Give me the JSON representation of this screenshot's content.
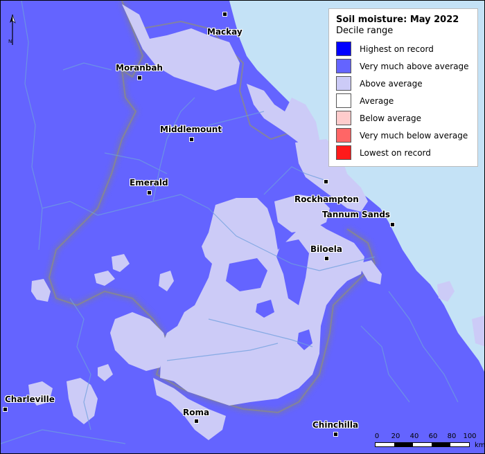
{
  "map": {
    "colors": {
      "very_much_above": "#6464ff",
      "above": "#cccbf7",
      "sea": "#c4e2f6",
      "river": "#6fa0dd",
      "boundary": "#808080"
    }
  },
  "legend": {
    "title": "Soil moisture: May 2022",
    "subtitle": "Decile range",
    "items": [
      {
        "label": "Highest on record",
        "color": "#0000ff"
      },
      {
        "label": "Very much above average",
        "color": "#6464ff"
      },
      {
        "label": "Above average",
        "color": "#cccbf7"
      },
      {
        "label": "Average",
        "color": "#ffffff"
      },
      {
        "label": "Below average",
        "color": "#ffcccc"
      },
      {
        "label": "Very much below average",
        "color": "#ff6666"
      },
      {
        "label": "Lowest on record",
        "color": "#ff1a1a"
      }
    ]
  },
  "north_arrow": {
    "label": "N"
  },
  "towns": [
    {
      "name": "Mackay"
    },
    {
      "name": "Moranbah"
    },
    {
      "name": "Middlemount"
    },
    {
      "name": "Emerald"
    },
    {
      "name": "Rockhampton"
    },
    {
      "name": "Tannum Sands"
    },
    {
      "name": "Biloela"
    },
    {
      "name": "Charleville"
    },
    {
      "name": "Roma"
    },
    {
      "name": "Chinchilla"
    }
  ],
  "scale": {
    "ticks": [
      "0",
      "20",
      "40",
      "60",
      "80",
      "100"
    ],
    "unit": "km"
  }
}
